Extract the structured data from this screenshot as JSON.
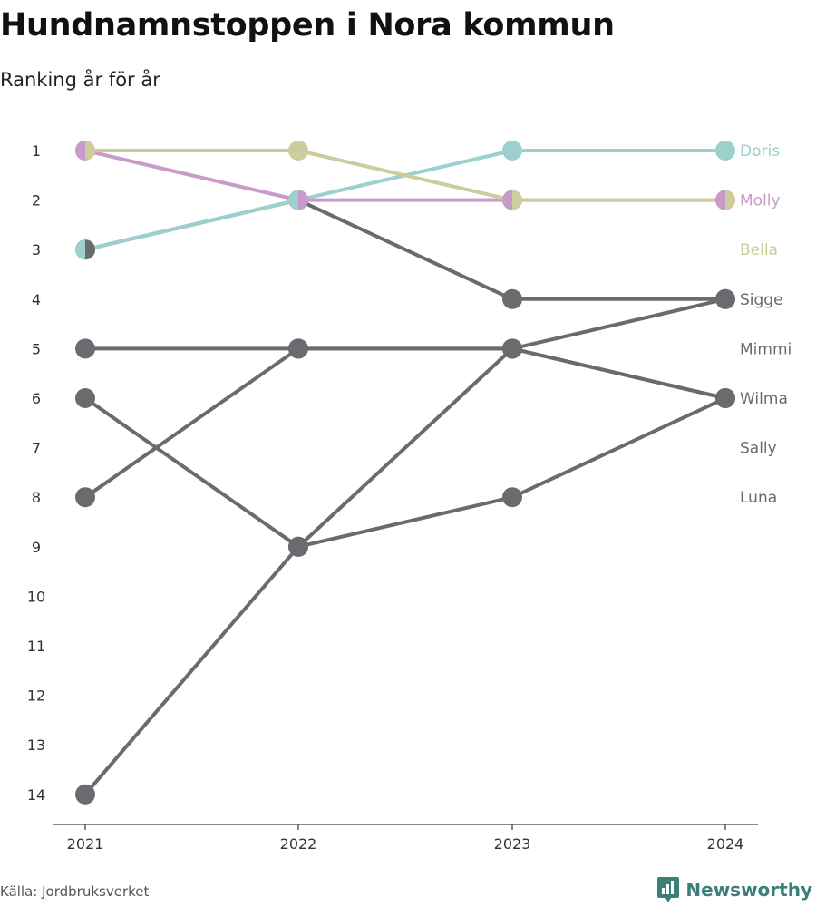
{
  "header": {
    "title": "Hundnamnstoppen i Nora kommun",
    "subtitle": "Ranking år för år"
  },
  "footer": {
    "source": "Källa: Jordbruksverket",
    "brand": "Newsworthy",
    "brand_icon": "bar-chart-speech-bubble-icon"
  },
  "colors": {
    "Doris": "#9bd0cc",
    "Molly": "#c99bcb",
    "Bella": "#cccc9c",
    "default": "#6b6a6f",
    "axis": "#444444"
  },
  "chart_data": {
    "type": "line",
    "x": [
      "2021",
      "2022",
      "2023",
      "2024"
    ],
    "ylim": [
      1,
      14
    ],
    "y_ticks": [
      "1",
      "2",
      "3",
      "4",
      "5",
      "6",
      "7",
      "8",
      "9",
      "10",
      "11",
      "12",
      "13",
      "14"
    ],
    "y_inverted": true,
    "series": [
      {
        "name": "Doris",
        "values": [
          3,
          2,
          1,
          1
        ]
      },
      {
        "name": "Molly",
        "values": [
          1,
          2,
          2,
          2
        ]
      },
      {
        "name": "Bella",
        "values": [
          1,
          1,
          2,
          2
        ]
      },
      {
        "name": "Sigge",
        "values": [
          3,
          2,
          4,
          4
        ]
      },
      {
        "name": "Mimmi",
        "values": [
          5,
          5,
          5,
          4
        ]
      },
      {
        "name": "Wilma",
        "values": [
          6,
          9,
          5,
          6
        ]
      },
      {
        "name": "Sally",
        "values": [
          8,
          5,
          5,
          6
        ]
      },
      {
        "name": "Luna",
        "values": [
          14,
          9,
          8,
          6
        ]
      }
    ],
    "end_labels": [
      {
        "name": "Doris",
        "rank": 1
      },
      {
        "name": "Molly",
        "rank": 2
      },
      {
        "name": "Bella",
        "rank": 3
      },
      {
        "name": "Sigge",
        "rank": 4
      },
      {
        "name": "Mimmi",
        "rank": 5
      },
      {
        "name": "Wilma",
        "rank": 6
      },
      {
        "name": "Sally",
        "rank": 7
      },
      {
        "name": "Luna",
        "rank": 8
      }
    ],
    "grid": false,
    "legend": "direct labels right"
  }
}
